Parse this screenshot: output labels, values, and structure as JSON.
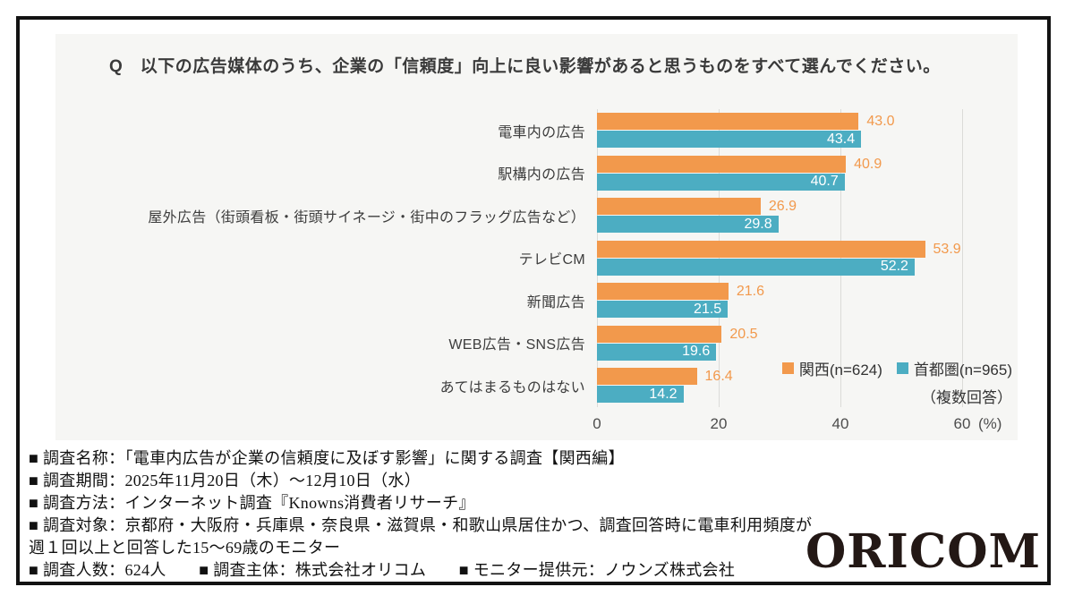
{
  "chart_data": {
    "type": "bar",
    "orientation": "horizontal",
    "title": "Q　以下の広告媒体のうち、企業の「信頼度」向上に良い影響があると思うものをすべて選んでください。",
    "categories": [
      "電車内の広告",
      "駅構内の広告",
      "屋外広告（街頭看板・街頭サイネージ・街中のフラッグ広告など）",
      "テレビCM",
      "新聞広告",
      "WEB広告・SNS広告",
      "あてはまるものはない"
    ],
    "series": [
      {
        "name": "関西(n=624)",
        "color": "#F2994C",
        "label_style": "outside-orange",
        "values": [
          43.0,
          40.9,
          26.9,
          53.9,
          21.6,
          20.5,
          16.4
        ]
      },
      {
        "name": "首都圏(n=965)",
        "color": "#4CADC2",
        "label_style": "inside-white",
        "values": [
          43.4,
          40.7,
          29.8,
          52.2,
          21.5,
          19.6,
          14.2
        ]
      }
    ],
    "x_ticks": [
      0,
      20,
      40,
      60
    ],
    "xlim": [
      0,
      60
    ],
    "xlabel_unit": "(%)",
    "legend_note": "（複数回答）",
    "legend_position": "bottom-right",
    "grid": true,
    "value_labels": true,
    "panel_background": "#f6f6f4"
  },
  "footer": {
    "lines": [
      "■ 調査名称：「電車内広告が企業の信頼度に及ぼす影響」に関する調査【関西編】",
      "■ 調査期間：2025年11月20日（木）～12月10日（水）",
      "■ 調査方法：インターネット調査『Knowns消費者リサーチ』",
      "■ 調査対象：京都府・大阪府・兵庫県・奈良県・滋賀県・和歌山県居住かつ、調査回答時に電車利用頻度が",
      "週１回以上と回答した15～69歳のモニター",
      "■ 調査人数：624人　　■ 調査主体：株式会社オリコム　　■ モニター提供元：ノウンズ株式会社"
    ]
  },
  "logo": {
    "text": "ORICOM"
  }
}
